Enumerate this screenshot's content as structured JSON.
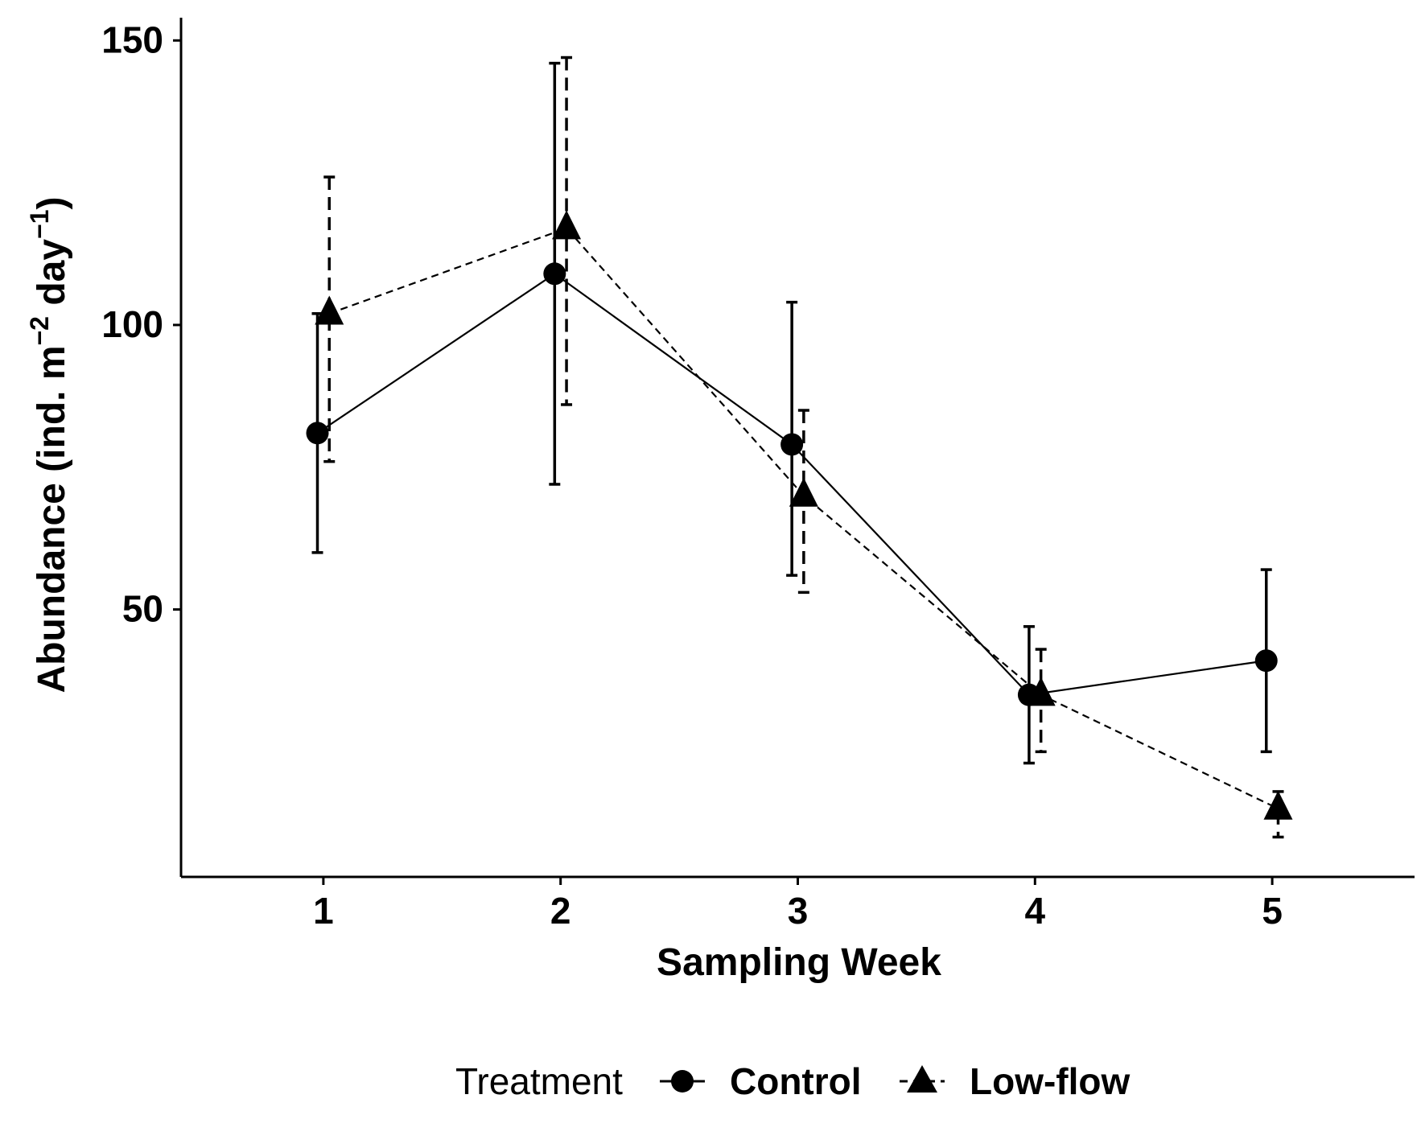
{
  "chart_data": {
    "type": "line",
    "title": "",
    "xlabel": "Sampling Week",
    "ylabel": {
      "base": "Abundance (ind. m",
      "sup1": "−2",
      "mid": " day",
      "sup2": "−1",
      "end": ")"
    },
    "x": [
      1,
      2,
      3,
      4,
      5
    ],
    "xticks": [
      "1",
      "2",
      "3",
      "4",
      "5"
    ],
    "xlim": [
      0.4,
      5.6
    ],
    "yticks": [
      "50",
      "100",
      "150"
    ],
    "ytick_values": [
      50,
      100,
      150
    ],
    "ylim": [
      3,
      154
    ],
    "grid": false,
    "legend": {
      "title": "Treatment",
      "position": "bottom",
      "entries": [
        "Control",
        "Low-flow"
      ]
    },
    "series": [
      {
        "name": "Control",
        "marker": "circle",
        "line_style": "solid",
        "values": [
          81,
          109,
          79,
          35,
          41
        ],
        "error_low": [
          60,
          72,
          56,
          23,
          25
        ],
        "error_high": [
          102,
          146,
          104,
          47,
          57
        ]
      },
      {
        "name": "Low-flow",
        "marker": "triangle",
        "line_style": "dashed",
        "values": [
          102,
          117,
          70,
          35,
          15
        ],
        "error_low": [
          76,
          86,
          53,
          25,
          10
        ],
        "error_high": [
          126,
          147,
          85,
          43,
          18
        ]
      }
    ],
    "colors": {
      "ink": "#000000",
      "background": "#ffffff"
    }
  }
}
